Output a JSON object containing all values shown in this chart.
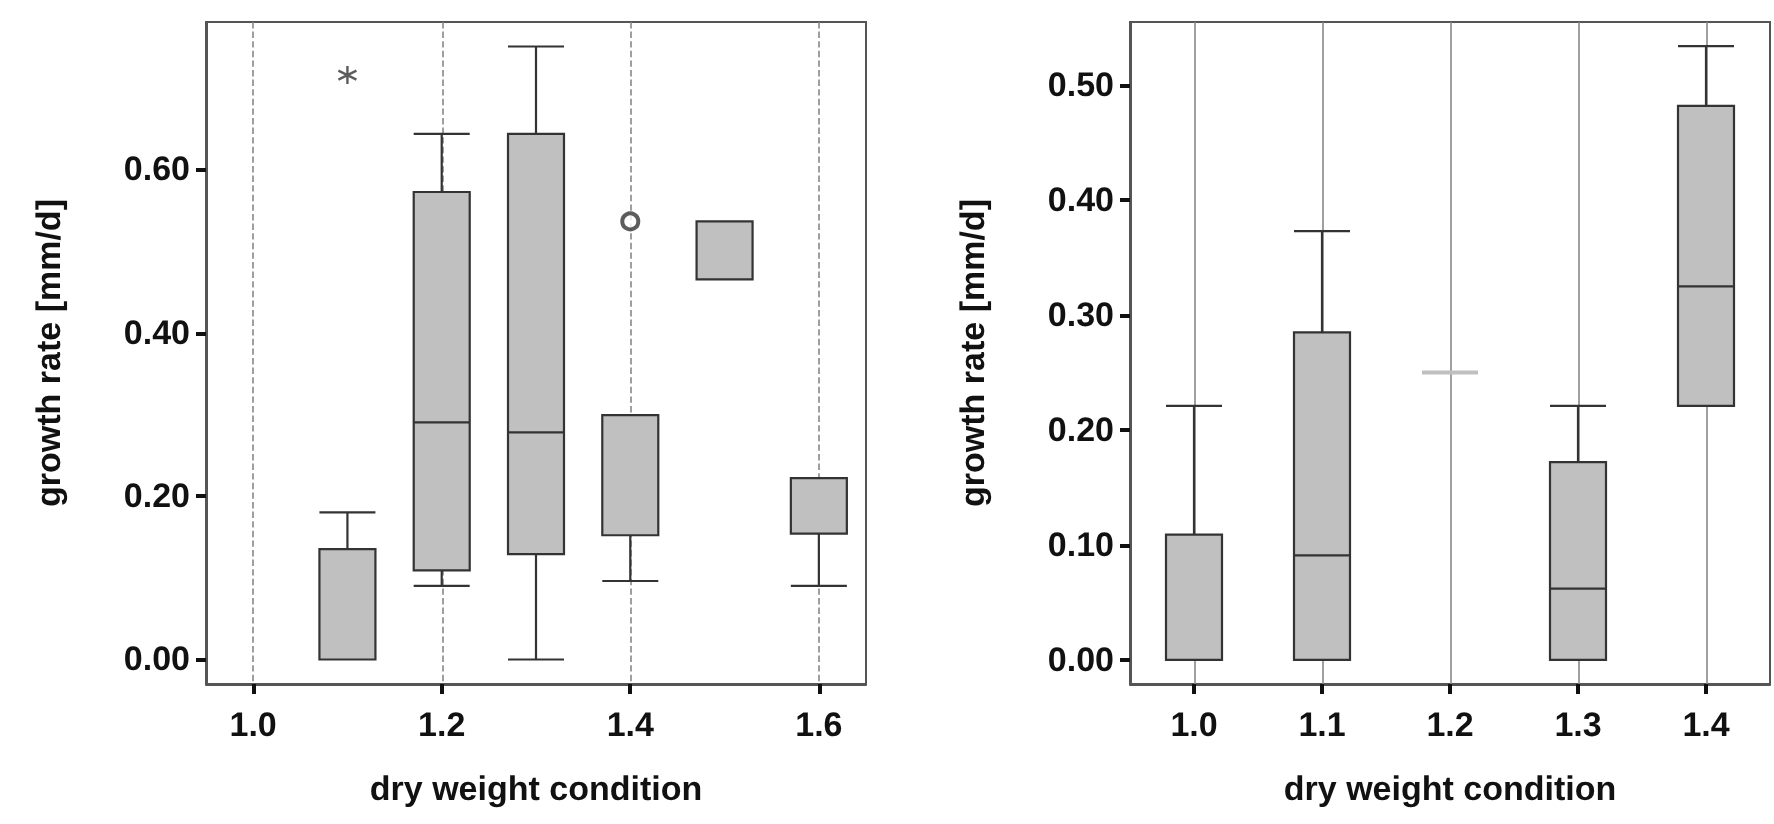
{
  "chart_data": [
    {
      "type": "box",
      "xlabel": "dry weight condition",
      "ylabel": "growth rate [mm/d]",
      "categories": [
        "1.0",
        null,
        "1.2",
        null,
        "1.4",
        null,
        "1.6"
      ],
      "ylim": [
        -0.03,
        0.78
      ],
      "yticks": [
        {
          "value": 0,
          "label": "0.00"
        },
        {
          "value": 0.2,
          "label": "0.20"
        },
        {
          "value": 0.4,
          "label": "0.40"
        },
        {
          "value": 0.6,
          "label": "0.60"
        }
      ],
      "grid": "x",
      "line_style": "dashed",
      "marker": "circle",
      "series": [
        {
          "color": "#c0c0c0",
          "boxes": [
            null,
            {
              "low": 0,
              "q1": 0,
              "median": 0,
              "q3": 0.135,
              "high": 0.18
            },
            {
              "low": 0.09,
              "q1": 0.109,
              "median": 0.29,
              "q3": 0.572,
              "high": 0.643
            },
            {
              "low": 0,
              "q1": 0.129,
              "median": 0.278,
              "q3": 0.643,
              "high": 0.75
            },
            {
              "low": 0.096,
              "q1": 0.152,
              "median": 0.152,
              "q3": 0.299,
              "high": 0.299,
              "outliers": [
                0.536
              ]
            },
            {
              "low": 0.465,
              "q1": 0.465,
              "median": 0.465,
              "q3": 0.536,
              "high": 0.536
            },
            {
              "low": 0.09,
              "q1": 0.154,
              "median": 0.154,
              "q3": 0.222,
              "high": 0.222
            }
          ]
        },
        {
          "type": "scatter",
          "marker": "cross",
          "color": "#333333",
          "values": [
            null,
            0.715,
            null,
            null,
            null,
            null,
            null
          ]
        }
      ]
    },
    {
      "type": "box",
      "xlabel": "dry weight condition",
      "ylabel": "growth rate [mm/d]",
      "categories": [
        "1.0",
        "1.1",
        "1.2",
        "1.3",
        "1.4"
      ],
      "ylim": [
        -0.021,
        0.555
      ],
      "yticks": [
        {
          "value": 0,
          "label": "0.00"
        },
        {
          "value": 0.1,
          "label": "0.10"
        },
        {
          "value": 0.2,
          "label": "0.20"
        },
        {
          "value": 0.3,
          "label": "0.30"
        },
        {
          "value": 0.4,
          "label": "0.40"
        },
        {
          "value": 0.5,
          "label": "0.50"
        }
      ],
      "grid": "x",
      "line_style": "solid",
      "series": [
        {
          "color": "#c0c0c0",
          "boxes": [
            {
              "low": 0,
              "q1": 0,
              "median": 0,
              "q3": 0.109,
              "high": 0.221
            },
            {
              "low": 0,
              "q1": 0,
              "median": 0.091,
              "q3": 0.285,
              "high": 0.373
            },
            {
              "low": 0.25,
              "q1": 0.25,
              "median": 0.25,
              "q3": 0.25,
              "high": 0.25
            },
            {
              "low": 0,
              "q1": 0,
              "median": 0.062,
              "q3": 0.172,
              "high": 0.221
            },
            {
              "low": 0.221,
              "q1": 0.221,
              "median": 0.325,
              "q3": 0.482,
              "high": 0.534
            }
          ]
        }
      ]
    }
  ]
}
